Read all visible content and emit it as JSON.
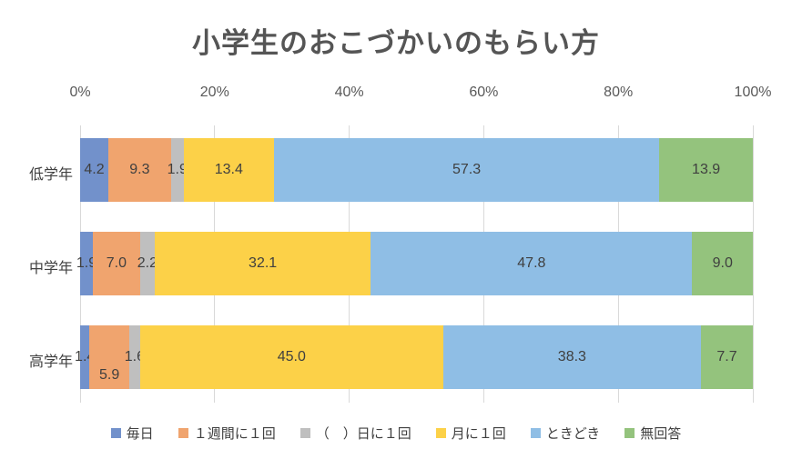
{
  "title": "小学生のおこづかいのもらい方",
  "chart_data": {
    "type": "bar",
    "orientation": "horizontal-stacked",
    "title": "小学生のおこづかいのもらい方",
    "categories": [
      "低学年",
      "中学年",
      "高学年"
    ],
    "series": [
      {
        "name": "毎日",
        "color": "#7291CB",
        "values": [
          4.2,
          1.9,
          1.4
        ]
      },
      {
        "name": "１週間に１回",
        "color": "#F0A46E",
        "values": [
          9.3,
          7.0,
          5.9
        ]
      },
      {
        "name": "（　）日に１回",
        "color": "#BFBFBF",
        "values": [
          1.9,
          2.2,
          1.6
        ]
      },
      {
        "name": "月に１回",
        "color": "#FCD148",
        "values": [
          13.4,
          32.1,
          45.0
        ]
      },
      {
        "name": "ときどき",
        "color": "#8FBEE5",
        "values": [
          57.3,
          47.8,
          38.3
        ]
      },
      {
        "name": "無回答",
        "color": "#94C37D",
        "values": [
          13.9,
          9.0,
          7.7
        ]
      }
    ],
    "x_tick_labels": [
      "0%",
      "20%",
      "40%",
      "60%",
      "80%",
      "100%"
    ],
    "xlim": [
      0,
      100
    ],
    "grid": true,
    "legend_position": "bottom",
    "label_decimals": 1,
    "offset_labels": [
      {
        "row": 2,
        "seg": 1,
        "dy": 20
      }
    ]
  }
}
